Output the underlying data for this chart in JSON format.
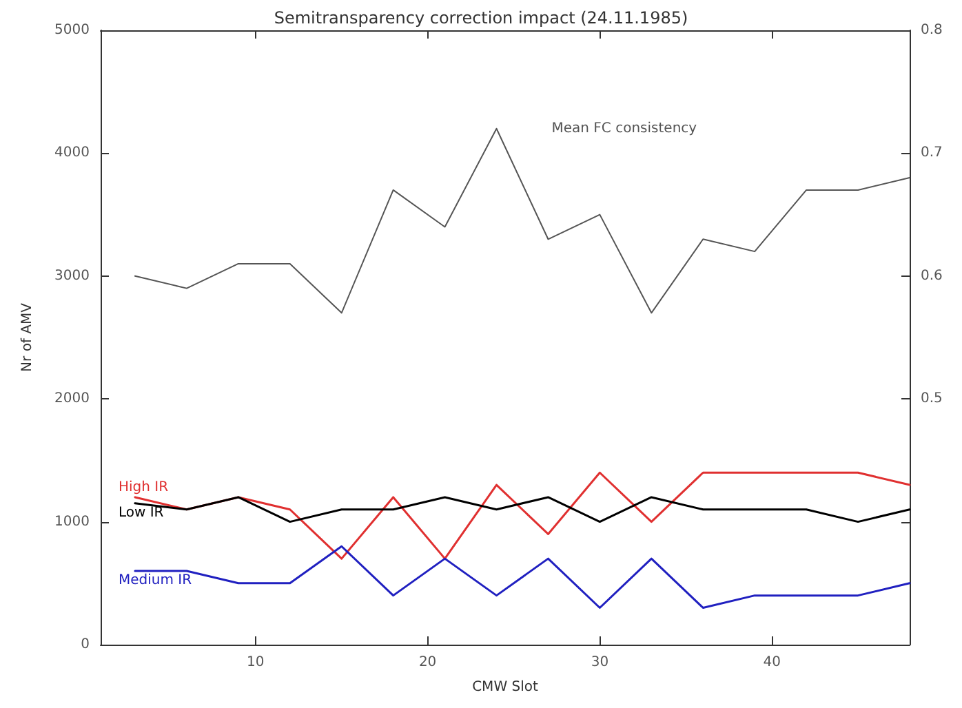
{
  "chart_data": {
    "type": "line",
    "title": "Semitransparency correction impact (24.11.1985)",
    "xlabel": "CMW Slot",
    "ylabel": "Nr of AMV",
    "x": [
      3,
      6,
      9,
      12,
      15,
      18,
      21,
      24,
      27,
      30,
      33,
      36,
      39,
      42,
      45,
      48
    ],
    "xlim": [
      1,
      48
    ],
    "xticks": [
      10,
      20,
      30,
      40
    ],
    "ylim": [
      0,
      5000
    ],
    "yticks": [
      0,
      1000,
      2000,
      3000,
      4000,
      5000
    ],
    "y2lim": [
      0.3,
      0.8
    ],
    "y2ticks": [
      {
        "value": 0.3,
        "label": null
      },
      {
        "value": 0.4,
        "label": null
      },
      0.5,
      0.6,
      0.7,
      0.8
    ],
    "series": [
      {
        "name": "Mean FC consistency",
        "color": "#555555",
        "axis": "y2",
        "values": [
          0.6,
          0.59,
          0.61,
          0.61,
          0.57,
          0.67,
          0.64,
          0.72,
          0.63,
          0.65,
          0.57,
          0.63,
          0.62,
          0.67,
          0.67,
          0.68
        ]
      },
      {
        "name": "High IR",
        "color": "#e03030",
        "values": [
          1200,
          1100,
          1200,
          1100,
          700,
          1200,
          700,
          1300,
          900,
          1400,
          1000,
          1400,
          1400,
          1400,
          1400,
          1300
        ]
      },
      {
        "name": "Low IR",
        "color": "#000000",
        "values": [
          1150,
          1100,
          1200,
          1000,
          1100,
          1100,
          1200,
          1100,
          1200,
          1000,
          1200,
          1100,
          1100,
          1100,
          1000,
          1100
        ]
      },
      {
        "name": "Medium IR",
        "color": "#2020c0",
        "values": [
          600,
          600,
          500,
          500,
          800,
          400,
          700,
          400,
          700,
          300,
          700,
          300,
          400,
          400,
          400,
          500
        ]
      }
    ],
    "grid": false,
    "legend": false,
    "marker": "none",
    "line_style": "solid"
  }
}
